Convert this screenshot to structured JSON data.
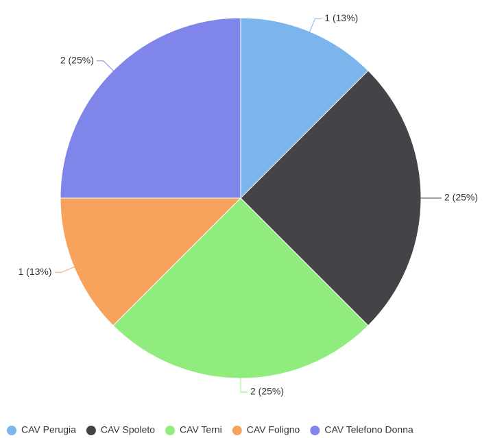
{
  "chart_data": {
    "type": "pie",
    "categories": [
      "CAV Perugia",
      "CAV Spoleto",
      "CAV Terni",
      "CAV Foligno",
      "CAV Telefono Donna"
    ],
    "values": [
      1,
      2,
      2,
      1,
      2
    ],
    "value_labels": [
      "1 (13%)",
      "2 (25%)",
      "2 (25%)",
      "1 (13%)",
      "2 (25%)"
    ],
    "colors": [
      "#7cb5ec",
      "#434348",
      "#90ed7d",
      "#f7a35c",
      "#8085e9"
    ],
    "legend": "bottom"
  }
}
